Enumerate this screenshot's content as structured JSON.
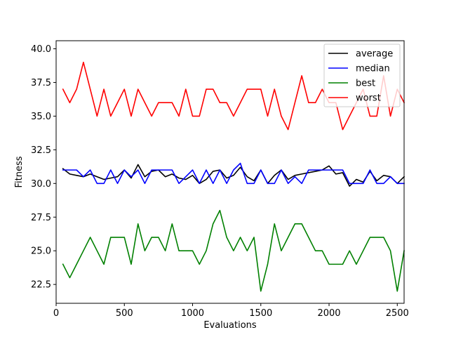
{
  "chart_data": {
    "type": "line",
    "xlabel": "Evaluations",
    "ylabel": "Fitness",
    "xlim": [
      0,
      2550
    ],
    "ylim": [
      21.1,
      40.6
    ],
    "xticks": [
      0,
      500,
      1000,
      1500,
      2000,
      2500
    ],
    "xtick_labels": [
      "0",
      "500",
      "1000",
      "1500",
      "2000",
      "2500"
    ],
    "yticks": [
      22.5,
      25.0,
      27.5,
      30.0,
      32.5,
      35.0,
      37.5,
      40.0
    ],
    "ytick_labels": [
      "22.5",
      "25.0",
      "27.5",
      "30.0",
      "32.5",
      "35.0",
      "37.5",
      "40.0"
    ],
    "legend_position": "top-right",
    "grid": false,
    "x": [
      50,
      100,
      150,
      200,
      250,
      300,
      350,
      400,
      450,
      500,
      550,
      600,
      650,
      700,
      750,
      800,
      850,
      900,
      950,
      1000,
      1050,
      1100,
      1150,
      1200,
      1250,
      1300,
      1350,
      1400,
      1450,
      1500,
      1550,
      1600,
      1650,
      1700,
      1750,
      1800,
      1850,
      1900,
      1950,
      2000,
      2050,
      2100,
      2150,
      2200,
      2250,
      2300,
      2350,
      2400,
      2450,
      2500,
      2550
    ],
    "series": [
      {
        "name": "average",
        "color": "#000000",
        "values": [
          31.1,
          30.7,
          30.6,
          30.5,
          30.7,
          30.5,
          30.3,
          30.4,
          30.5,
          31.0,
          30.4,
          31.4,
          30.5,
          30.9,
          31.0,
          30.5,
          30.7,
          30.4,
          30.3,
          30.6,
          30.0,
          30.3,
          30.9,
          31.0,
          30.4,
          30.6,
          31.2,
          30.5,
          30.2,
          31.0,
          30.0,
          30.6,
          31.0,
          30.3,
          30.6,
          30.7,
          30.8,
          30.9,
          31.0,
          31.3,
          30.7,
          30.8,
          29.8,
          30.3,
          30.1,
          30.9,
          30.2,
          30.6,
          30.5,
          30.0,
          30.5
        ]
      },
      {
        "name": "median",
        "color": "#0000ff",
        "values": [
          31.0,
          31.0,
          31.0,
          30.5,
          31.0,
          30.0,
          30.0,
          31.0,
          30.0,
          31.0,
          30.5,
          31.0,
          30.0,
          31.0,
          31.0,
          31.0,
          31.0,
          30.0,
          30.5,
          31.0,
          30.0,
          31.0,
          30.0,
          31.0,
          30.0,
          31.0,
          31.5,
          30.0,
          30.0,
          31.0,
          30.0,
          30.0,
          31.0,
          30.0,
          30.5,
          30.0,
          31.0,
          31.0,
          31.0,
          31.0,
          31.0,
          31.0,
          30.0,
          30.0,
          30.0,
          31.0,
          30.0,
          30.0,
          30.5,
          30.0,
          30.0
        ]
      },
      {
        "name": "best",
        "color": "#008000",
        "values": [
          24,
          23,
          24,
          25,
          26,
          25,
          24,
          26,
          26,
          26,
          24,
          27,
          25,
          26,
          26,
          25,
          27,
          25,
          25,
          25,
          24,
          25,
          27,
          28,
          26,
          25,
          26,
          25,
          26,
          22,
          24,
          27,
          25,
          26,
          27,
          27,
          26,
          25,
          25,
          24,
          24,
          24,
          25,
          24,
          25,
          26,
          26,
          26,
          25,
          22,
          25
        ]
      },
      {
        "name": "worst",
        "color": "#ff0000",
        "values": [
          37,
          36,
          37,
          39,
          37,
          35,
          37,
          35,
          36,
          37,
          35,
          37,
          36,
          35,
          36,
          36,
          36,
          35,
          37,
          35,
          35,
          37,
          37,
          36,
          36,
          35,
          36,
          37,
          37,
          37,
          35,
          37,
          35,
          34,
          36,
          38,
          36,
          36,
          37,
          36,
          36,
          34,
          35,
          36,
          37,
          35,
          35,
          38,
          35,
          37,
          36
        ]
      }
    ]
  }
}
